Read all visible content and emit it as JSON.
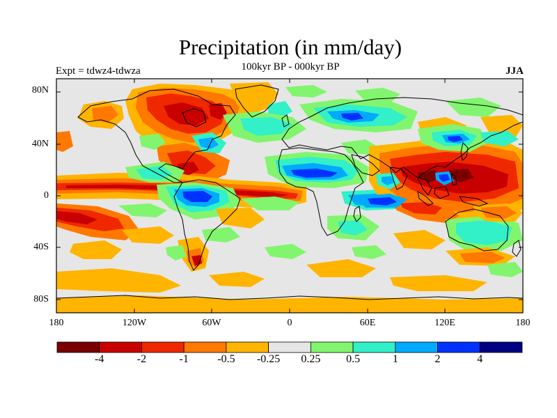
{
  "title": "Precipitation (in mm/day)",
  "subtitle_center": "100kyr BP - 000kyr BP",
  "subtitle_left": "Expt = tdwz4-tdwza",
  "subtitle_right": "JJA",
  "lat_labels": [
    "80N",
    "40N",
    "0",
    "40S",
    "80S"
  ],
  "lon_labels": [
    "180",
    "120W",
    "60W",
    "0",
    "60E",
    "120E",
    "180"
  ],
  "colorbar": {
    "labels": [
      "-4",
      "-2",
      "-1",
      "-0.5",
      "-0.25",
      "0.25",
      "0.5",
      "1",
      "2",
      "4"
    ],
    "colors": [
      "#7a0000",
      "#c80000",
      "#f02800",
      "#ff7800",
      "#ffb400",
      "#e6e6e6",
      "#82f56e",
      "#32f0c8",
      "#00aaff",
      "#0032ff",
      "#000082"
    ]
  },
  "colors": {
    "no_change": "#e6e6e6",
    "coastline": "#000000"
  }
}
